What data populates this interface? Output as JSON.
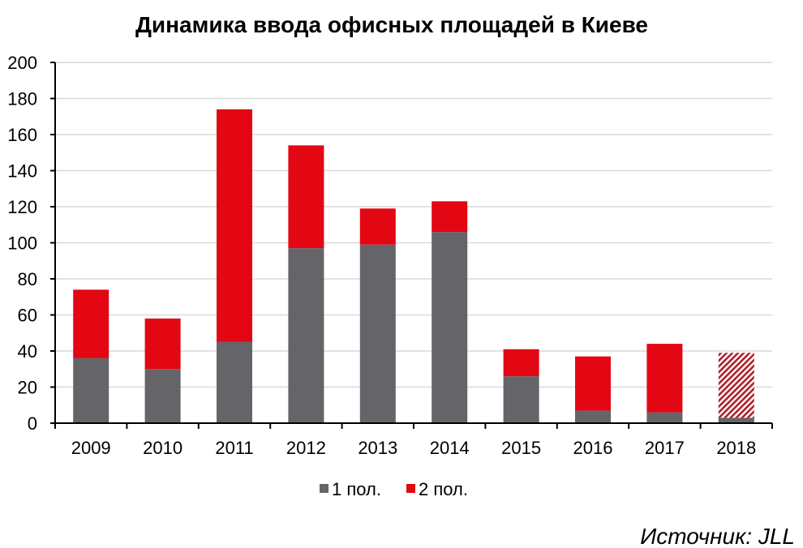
{
  "chart_data": {
    "type": "bar",
    "stacked": true,
    "title": "Динамика ввода офисных площадей в Киеве",
    "categories": [
      "2009",
      "2010",
      "2011",
      "2012",
      "2013",
      "2014",
      "2015",
      "2016",
      "2017",
      "2018"
    ],
    "series": [
      {
        "name": "1 пол.",
        "color": "#646469",
        "values": [
          36,
          30,
          45,
          97,
          99,
          106,
          26,
          7,
          6,
          3
        ]
      },
      {
        "name": "2 пол.",
        "color": "#e30613",
        "values": [
          38,
          28,
          129,
          57,
          20,
          17,
          15,
          30,
          38,
          36
        ]
      }
    ],
    "projected": {
      "category": "2018",
      "series": "2 пол.",
      "pattern": "diagonal-hatch",
      "color": "#b0202a"
    },
    "yticks": [
      0,
      20,
      40,
      60,
      80,
      100,
      120,
      140,
      160,
      180,
      200
    ],
    "ylim": [
      0,
      200
    ],
    "xlabel": "",
    "ylabel": "",
    "grid": true,
    "legend_position": "bottom-center"
  },
  "source": {
    "text": "Источник: JLL"
  }
}
